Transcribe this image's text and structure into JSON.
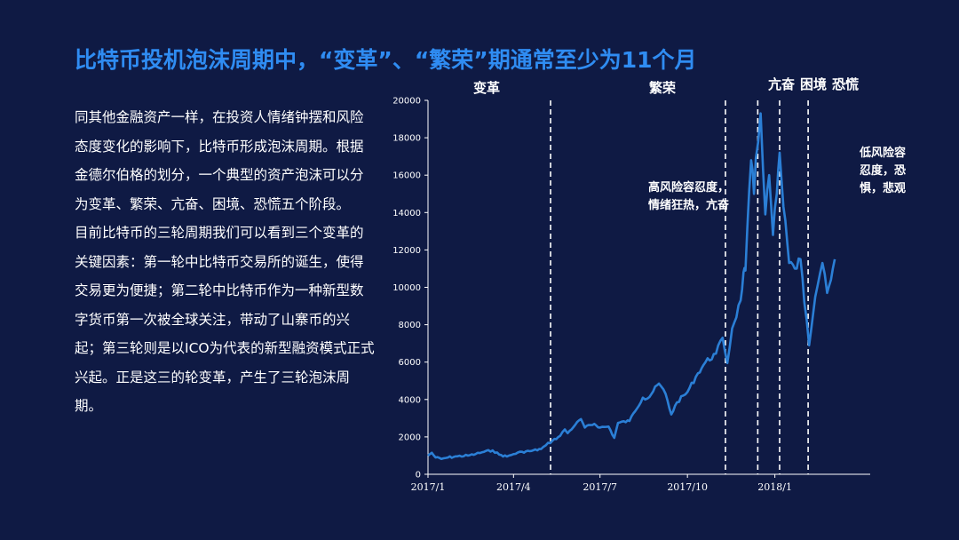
{
  "title": "比特币投机泡沫周期中，“变革”、“繁荣”期通常至少为11个月",
  "paragraphs": [
    "同其他金融资产一样，在投资人情绪钟摆和风险态度变化的影响下，比特币形成泡沫周期。根据金德尔伯格的划分，一个典型的资产泡沫可以分为变革、繁荣、亢奋、困境、恐慌五个阶段。",
    "目前比特币的三轮周期我们可以看到三个变革的关键因素：第一轮中比特币交易所的诞生，使得交易更为便捷；第二轮中比特币作为一种新型数字货币第一次被全球关注，带动了山寨币的兴起；第三轮则是以ICO为代表的新型融资模式正式兴起。正是这三的轮变革，产生了三轮泡沫周期。"
  ],
  "colors": {
    "background": "#0f1a44",
    "title": "#2f8cf2",
    "line": "#2b7fd6",
    "axis": "#ffffff",
    "divider": "#ffffff"
  },
  "chart_data": {
    "type": "line",
    "x_tick_labels": [
      "2017/1",
      "2017/4",
      "2017/7",
      "2017/10",
      "2018/1"
    ],
    "x_tick_dates": [
      "2017-01-01",
      "2017-04-01",
      "2017-07-01",
      "2017-10-01",
      "2018-01-01"
    ],
    "xlim": [
      "2017-01-01",
      "2018-04-30"
    ],
    "ylim": [
      0,
      20000
    ],
    "y_ticks": [
      0,
      2000,
      4000,
      6000,
      8000,
      10000,
      12000,
      14000,
      16000,
      18000,
      20000
    ],
    "grid": false,
    "phases": [
      {
        "label": "变革"
      },
      {
        "label": "繁荣"
      },
      {
        "label": "亢奋"
      },
      {
        "label": "困境"
      },
      {
        "label": "恐慌"
      }
    ],
    "phase_boundaries": [
      "2017-05-10",
      "2017-11-10",
      "2017-12-14",
      "2018-01-06",
      "2018-02-05"
    ],
    "annotations": [
      {
        "lines": [
          "高风险容忍度，",
          "情绪狂热，亢奋"
        ]
      },
      {
        "lines": [
          "低风险容",
          "忍度，恐",
          "惧，悲观"
        ]
      }
    ],
    "series": [
      {
        "points": [
          [
            "2017-01-01",
            1000
          ],
          [
            "2017-01-05",
            1150
          ],
          [
            "2017-01-09",
            900
          ],
          [
            "2017-01-15",
            820
          ],
          [
            "2017-01-22",
            900
          ],
          [
            "2017-02-01",
            960
          ],
          [
            "2017-02-12",
            1000
          ],
          [
            "2017-02-20",
            1080
          ],
          [
            "2017-03-01",
            1200
          ],
          [
            "2017-03-10",
            1280
          ],
          [
            "2017-03-17",
            1050
          ],
          [
            "2017-03-25",
            950
          ],
          [
            "2017-04-01",
            1080
          ],
          [
            "2017-04-10",
            1200
          ],
          [
            "2017-04-20",
            1250
          ],
          [
            "2017-04-30",
            1350
          ],
          [
            "2017-05-05",
            1550
          ],
          [
            "2017-05-12",
            1800
          ],
          [
            "2017-05-20",
            2050
          ],
          [
            "2017-05-25",
            2400
          ],
          [
            "2017-05-28",
            2200
          ],
          [
            "2017-06-05",
            2650
          ],
          [
            "2017-06-11",
            2950
          ],
          [
            "2017-06-15",
            2500
          ],
          [
            "2017-06-25",
            2700
          ],
          [
            "2017-07-01",
            2500
          ],
          [
            "2017-07-10",
            2550
          ],
          [
            "2017-07-16",
            1950
          ],
          [
            "2017-07-20",
            2750
          ],
          [
            "2017-08-01",
            2850
          ],
          [
            "2017-08-05",
            3250
          ],
          [
            "2017-08-15",
            4100
          ],
          [
            "2017-08-20",
            4050
          ],
          [
            "2017-09-01",
            4850
          ],
          [
            "2017-09-08",
            4300
          ],
          [
            "2017-09-14",
            3200
          ],
          [
            "2017-09-20",
            3850
          ],
          [
            "2017-10-01",
            4400
          ],
          [
            "2017-10-12",
            5400
          ],
          [
            "2017-10-20",
            6000
          ],
          [
            "2017-10-31",
            6450
          ],
          [
            "2017-11-07",
            7300
          ],
          [
            "2017-11-12",
            5950
          ],
          [
            "2017-11-17",
            7800
          ],
          [
            "2017-11-26",
            9300
          ],
          [
            "2017-11-29",
            10800
          ],
          [
            "2017-12-01",
            10900
          ],
          [
            "2017-12-07",
            16800
          ],
          [
            "2017-12-10",
            15000
          ],
          [
            "2017-12-12",
            16900
          ],
          [
            "2017-12-17",
            19300
          ],
          [
            "2017-12-22",
            13900
          ],
          [
            "2017-12-26",
            16000
          ],
          [
            "2017-12-30",
            12800
          ],
          [
            "2018-01-03",
            15000
          ],
          [
            "2018-01-06",
            17200
          ],
          [
            "2018-01-10",
            14300
          ],
          [
            "2018-01-16",
            11300
          ],
          [
            "2018-01-22",
            11000
          ],
          [
            "2018-01-28",
            11500
          ],
          [
            "2018-02-01",
            9200
          ],
          [
            "2018-02-06",
            6900
          ],
          [
            "2018-02-10",
            8500
          ],
          [
            "2018-02-15",
            10100
          ],
          [
            "2018-02-20",
            11300
          ],
          [
            "2018-02-25",
            9700
          ],
          [
            "2018-03-01",
            10400
          ],
          [
            "2018-03-05",
            11500
          ]
        ]
      }
    ]
  }
}
